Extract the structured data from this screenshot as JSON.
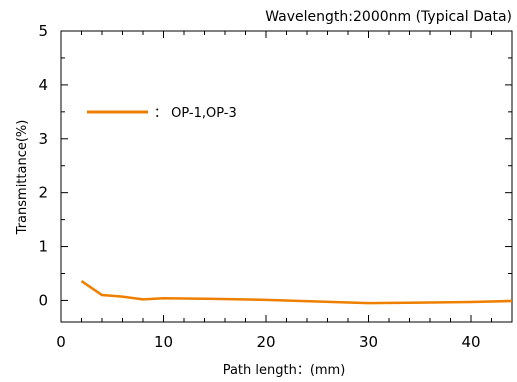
{
  "chart_data": {
    "type": "line",
    "title": "Wavelength:2000nm  (Typical Data)",
    "xlabel": "Path length：(mm)",
    "ylabel": "Transmittance(%)",
    "xlim": [
      0,
      44
    ],
    "ylim": [
      -0.4,
      5
    ],
    "xticks": [
      0,
      10,
      20,
      30,
      40
    ],
    "yticks": [
      0,
      1,
      2,
      3,
      4,
      5
    ],
    "grid": false,
    "legend_position": "top-left",
    "series": [
      {
        "name": "OP-1,OP-3",
        "color": "#ee7f00",
        "x": [
          2,
          4,
          6,
          8,
          10,
          15,
          20,
          25,
          30,
          35,
          40,
          44
        ],
        "y": [
          0.36,
          0.1,
          0.07,
          0.02,
          0.04,
          0.03,
          0.01,
          -0.02,
          -0.05,
          -0.04,
          -0.03,
          -0.01
        ]
      }
    ]
  }
}
